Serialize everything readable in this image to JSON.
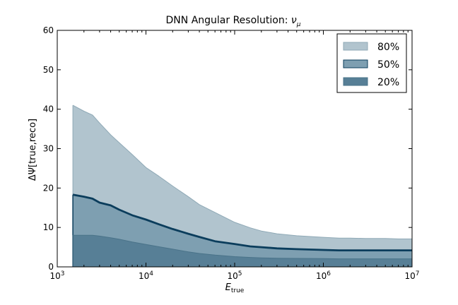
{
  "chart_data": {
    "type": "area",
    "title": "DNN Angular Resolution: ",
    "title_symbol": "ν",
    "title_subscript": "μ",
    "xlabel": "E",
    "xlabel_subscript": "true",
    "ylabel": "ΔΨ[true,reco]",
    "xscale": "log",
    "xlim": [
      1000,
      10000000
    ],
    "ylim": [
      0,
      60
    ],
    "x_tick_labels": [
      {
        "base": "10",
        "exp": "3"
      },
      {
        "base": "10",
        "exp": "4"
      },
      {
        "base": "10",
        "exp": "5"
      },
      {
        "base": "10",
        "exp": "6"
      },
      {
        "base": "10",
        "exp": "7"
      }
    ],
    "y_ticks": [
      0,
      10,
      20,
      30,
      40,
      50,
      60
    ],
    "y_tick_labels": [
      "0",
      "10",
      "20",
      "30",
      "40",
      "50",
      "60"
    ],
    "grid": false,
    "legend_position": "top-right",
    "x": [
      1500,
      2000,
      2500,
      3000,
      4000,
      5000,
      7000,
      10000,
      14000,
      20000,
      30000,
      40000,
      60000,
      100000,
      150000,
      200000,
      300000,
      500000,
      1000000,
      1500000,
      2000000,
      3000000,
      5000000,
      7000000,
      10000000
    ],
    "series": [
      {
        "name": "80%",
        "color": "#b1c4ce",
        "edge_color": "#8fa9b6",
        "values": [
          41.0,
          39.5,
          38.5,
          36.5,
          33.5,
          31.5,
          28.5,
          25.2,
          23.0,
          20.5,
          17.8,
          15.8,
          13.8,
          11.3,
          9.9,
          9.1,
          8.4,
          7.9,
          7.5,
          7.3,
          7.3,
          7.2,
          7.2,
          7.1,
          7.1
        ]
      },
      {
        "name": "50%",
        "color": "#7e9fb1",
        "edge_color": "#0b3d5c",
        "values": [
          18.3,
          17.8,
          17.3,
          16.3,
          15.6,
          14.5,
          13.1,
          12.0,
          10.8,
          9.6,
          8.4,
          7.6,
          6.5,
          5.8,
          5.2,
          5.0,
          4.7,
          4.5,
          4.3,
          4.2,
          4.2,
          4.2,
          4.2,
          4.2,
          4.2
        ]
      },
      {
        "name": "20%",
        "color": "#577f96",
        "edge_color": "#4a7389",
        "values": [
          8.0,
          8.0,
          8.0,
          7.8,
          7.4,
          7.0,
          6.3,
          5.7,
          5.1,
          4.5,
          3.8,
          3.4,
          3.0,
          2.6,
          2.4,
          2.3,
          2.2,
          2.15,
          2.1,
          2.05,
          2.05,
          2.05,
          2.05,
          2.05,
          2.05
        ]
      }
    ]
  }
}
